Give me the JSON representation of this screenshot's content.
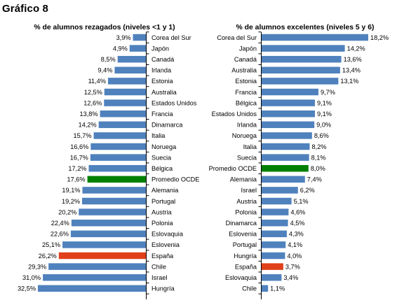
{
  "figure_title": "Gráfico 8",
  "colors": {
    "default": "#4F81BD",
    "highlight_green": "#008000",
    "highlight_red": "#E0401A"
  },
  "chart_data": [
    {
      "type": "bar",
      "orientation": "horizontal",
      "title": "% de alumnos rezagados (niveles <1 y 1)",
      "categories": [
        "Corea del Sur",
        "Japón",
        "Canadá",
        "Irlanda",
        "Estonia",
        "Australia",
        "Estados Unidos",
        "Francia",
        "Dinamarca",
        "Italia",
        "Noruega",
        "Suecia",
        "Bélgica",
        "Promedio OCDE",
        "Alemania",
        "Portugal",
        "Austria",
        "Polonia",
        "Eslovaquia",
        "Eslovenia",
        "España",
        "Chile",
        "Israel",
        "Hungría"
      ],
      "values": [
        3.9,
        4.9,
        8.5,
        9.4,
        11.4,
        12.5,
        12.6,
        13.8,
        14.2,
        15.7,
        16.6,
        16.7,
        17.2,
        17.6,
        19.1,
        19.2,
        20.2,
        22.4,
        22.6,
        25.1,
        26.2,
        29.3,
        31.0,
        32.5
      ],
      "value_labels": [
        "3,9%",
        "4,9%",
        "8,5%",
        "9,4%",
        "11,4%",
        "12,5%",
        "12,6%",
        "13,8%",
        "14,2%",
        "15,7%",
        "16,6%",
        "16,7%",
        "17,2%",
        "17,6%",
        "19,1%",
        "19,2%",
        "20,2%",
        "22,4%",
        "22,6%",
        "25,1%",
        "26,2%",
        "29,3%",
        "31,0%",
        "32,5%"
      ],
      "bar_colors": {
        "Promedio OCDE": "#008000",
        "España": "#E0401A"
      },
      "direction": "right-to-left",
      "category_labels_side": "right",
      "xlim": [
        0,
        33
      ]
    },
    {
      "type": "bar",
      "orientation": "horizontal",
      "title": "% de alumnos excelentes (niveles 5 y 6)",
      "categories": [
        "Corea del Sur",
        "Japón",
        "Canadá",
        "Australia",
        "Estonia",
        "Francia",
        "Bélgica",
        "Estados Unidos",
        "Irlanda",
        "Noruega",
        "Italia",
        "Suecia",
        "Promedio OCDE",
        "Alemania",
        "Israel",
        "Austria",
        "Polonia",
        "Dinamarca",
        "Eslovenia",
        "Portugal",
        "Hungría",
        "España",
        "Eslovaquia",
        "Chile"
      ],
      "values": [
        18.2,
        14.2,
        13.6,
        13.4,
        13.1,
        9.7,
        9.1,
        9.1,
        9.0,
        8.6,
        8.2,
        8.1,
        8.0,
        7.4,
        6.2,
        5.1,
        4.6,
        4.5,
        4.3,
        4.1,
        4.0,
        3.7,
        3.4,
        1.1
      ],
      "value_labels": [
        "18,2%",
        "14,2%",
        "13,6%",
        "13,4%",
        "13,1%",
        "9,7%",
        "9,1%",
        "9,1%",
        "9,0%",
        "8,6%",
        "8,2%",
        "8,1%",
        "8,0%",
        "7,4%",
        "6,2%",
        "5,1%",
        "4,6%",
        "4,5%",
        "4,3%",
        "4,1%",
        "4,0%",
        "3,7%",
        "3,4%",
        "1,1%"
      ],
      "bar_colors": {
        "Promedio OCDE": "#008000",
        "España": "#E0401A"
      },
      "direction": "left-to-right",
      "category_labels_side": "left",
      "xlim": [
        0,
        18.2
      ]
    }
  ]
}
